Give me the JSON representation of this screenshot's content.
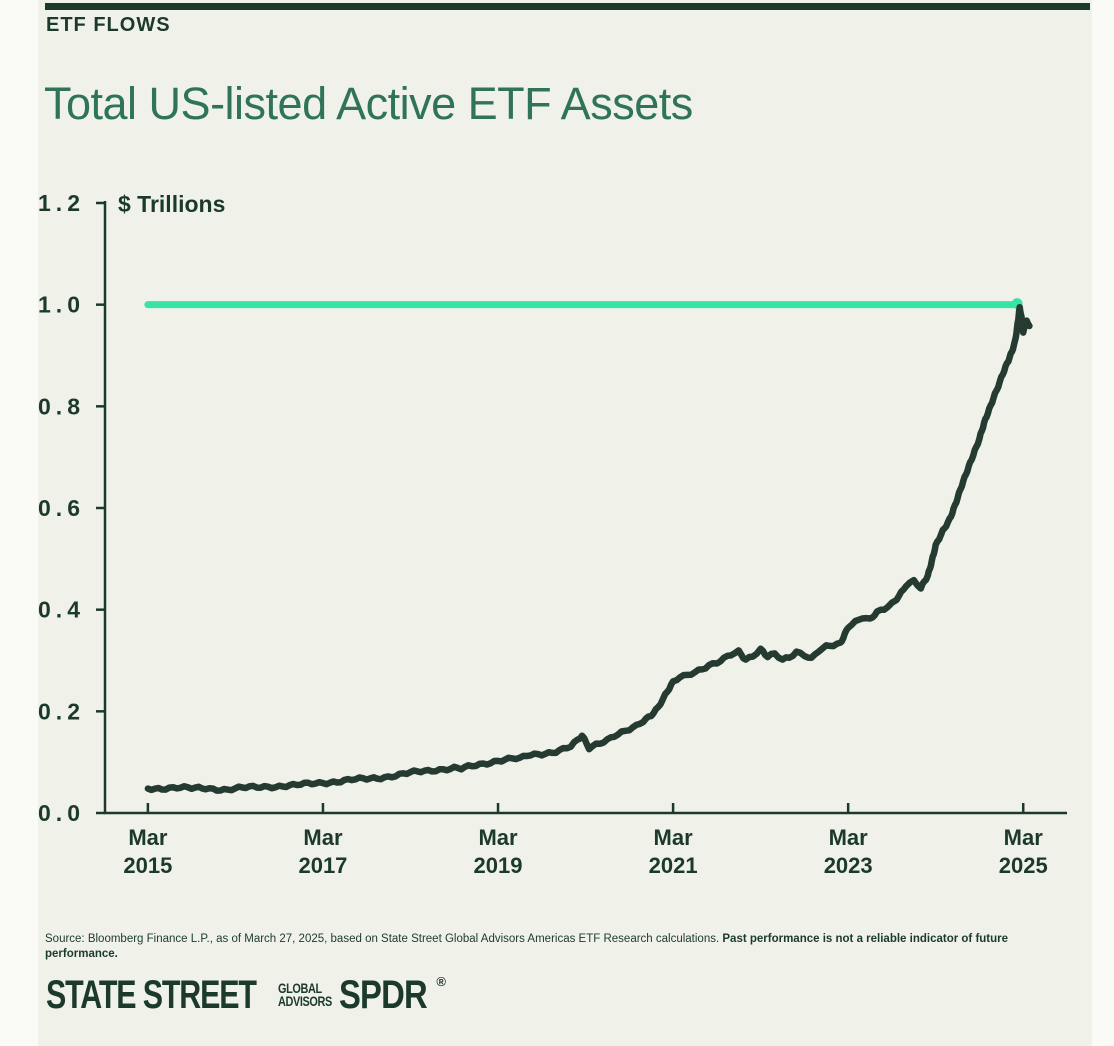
{
  "header": {
    "kicker": "ETF FLOWS",
    "title": "Total US-listed Active ETF Assets"
  },
  "colors": {
    "background_page": "#fafaf6",
    "background_card": "#f0f1e9",
    "dark_green_text": "#1c3a2c",
    "title_green": "#2f745a",
    "series_line": "#253a30",
    "reference_mint": "#38e3a7"
  },
  "chart_data": {
    "type": "line",
    "title": "Total US-listed Active ETF Assets",
    "unit_label": "$ Trillions",
    "xlabel": "",
    "ylabel": "$ Trillions",
    "ylim": [
      0,
      1.2
    ],
    "xlim": [
      2014.68,
      2025.67
    ],
    "grid": false,
    "legend_position": "none",
    "y_ticks": [
      0.0,
      0.2,
      0.4,
      0.6,
      0.8,
      1.0,
      1.2
    ],
    "y_tick_labels": [
      "0.0",
      "0.2",
      "0.4",
      "0.6",
      "0.8",
      "1.0",
      "1.2"
    ],
    "x_ticks": [
      2015.17,
      2017.17,
      2019.17,
      2021.17,
      2023.17,
      2025.17
    ],
    "x_tick_labels": [
      [
        "Mar",
        "2015"
      ],
      [
        "Mar",
        "2017"
      ],
      [
        "Mar",
        "2019"
      ],
      [
        "Mar",
        "2021"
      ],
      [
        "Mar",
        "2023"
      ],
      [
        "Mar",
        "2025"
      ]
    ],
    "reference_line": {
      "value": 1.0,
      "x_start": 2015.17,
      "x_end": 2025.1,
      "color": "#38e3a7",
      "end_dot": true
    },
    "series": [
      {
        "name": "Total US-listed Active ETF Assets ($ Trillions)",
        "color": "#253a30",
        "points": [
          [
            2015.17,
            0.048
          ],
          [
            2015.33,
            0.049
          ],
          [
            2015.5,
            0.05
          ],
          [
            2015.67,
            0.048
          ],
          [
            2015.83,
            0.049
          ],
          [
            2016.0,
            0.047
          ],
          [
            2016.08,
            0.046
          ],
          [
            2016.17,
            0.048
          ],
          [
            2016.33,
            0.05
          ],
          [
            2016.5,
            0.052
          ],
          [
            2016.67,
            0.053
          ],
          [
            2016.83,
            0.054
          ],
          [
            2017.0,
            0.057
          ],
          [
            2017.17,
            0.06
          ],
          [
            2017.33,
            0.062
          ],
          [
            2017.5,
            0.065
          ],
          [
            2017.67,
            0.067
          ],
          [
            2017.83,
            0.07
          ],
          [
            2018.0,
            0.074
          ],
          [
            2018.17,
            0.079
          ],
          [
            2018.33,
            0.082
          ],
          [
            2018.5,
            0.086
          ],
          [
            2018.67,
            0.089
          ],
          [
            2018.75,
            0.087
          ],
          [
            2018.83,
            0.09
          ],
          [
            2019.0,
            0.096
          ],
          [
            2019.17,
            0.104
          ],
          [
            2019.33,
            0.108
          ],
          [
            2019.42,
            0.106
          ],
          [
            2019.5,
            0.112
          ],
          [
            2019.67,
            0.116
          ],
          [
            2019.83,
            0.122
          ],
          [
            2020.0,
            0.131
          ],
          [
            2020.08,
            0.142
          ],
          [
            2020.13,
            0.151
          ],
          [
            2020.21,
            0.128
          ],
          [
            2020.29,
            0.136
          ],
          [
            2020.42,
            0.145
          ],
          [
            2020.5,
            0.152
          ],
          [
            2020.58,
            0.157
          ],
          [
            2020.67,
            0.163
          ],
          [
            2020.75,
            0.17
          ],
          [
            2020.83,
            0.181
          ],
          [
            2020.92,
            0.194
          ],
          [
            2021.0,
            0.209
          ],
          [
            2021.08,
            0.231
          ],
          [
            2021.17,
            0.256
          ],
          [
            2021.25,
            0.268
          ],
          [
            2021.33,
            0.272
          ],
          [
            2021.42,
            0.279
          ],
          [
            2021.5,
            0.284
          ],
          [
            2021.58,
            0.29
          ],
          [
            2021.67,
            0.294
          ],
          [
            2021.75,
            0.302
          ],
          [
            2021.83,
            0.311
          ],
          [
            2021.92,
            0.318
          ],
          [
            2022.0,
            0.303
          ],
          [
            2022.08,
            0.31
          ],
          [
            2022.17,
            0.322
          ],
          [
            2022.25,
            0.306
          ],
          [
            2022.33,
            0.312
          ],
          [
            2022.42,
            0.301
          ],
          [
            2022.5,
            0.307
          ],
          [
            2022.58,
            0.318
          ],
          [
            2022.67,
            0.312
          ],
          [
            2022.75,
            0.304
          ],
          [
            2022.83,
            0.318
          ],
          [
            2022.92,
            0.326
          ],
          [
            2023.0,
            0.329
          ],
          [
            2023.08,
            0.333
          ],
          [
            2023.17,
            0.368
          ],
          [
            2023.25,
            0.376
          ],
          [
            2023.33,
            0.384
          ],
          [
            2023.42,
            0.379
          ],
          [
            2023.5,
            0.394
          ],
          [
            2023.58,
            0.402
          ],
          [
            2023.67,
            0.413
          ],
          [
            2023.75,
            0.428
          ],
          [
            2023.83,
            0.447
          ],
          [
            2023.92,
            0.455
          ],
          [
            2024.0,
            0.441
          ],
          [
            2024.08,
            0.468
          ],
          [
            2024.17,
            0.525
          ],
          [
            2024.25,
            0.553
          ],
          [
            2024.33,
            0.579
          ],
          [
            2024.42,
            0.62
          ],
          [
            2024.5,
            0.658
          ],
          [
            2024.58,
            0.698
          ],
          [
            2024.67,
            0.737
          ],
          [
            2024.75,
            0.779
          ],
          [
            2024.83,
            0.818
          ],
          [
            2024.92,
            0.856
          ],
          [
            2025.0,
            0.889
          ],
          [
            2025.04,
            0.908
          ],
          [
            2025.08,
            0.932
          ],
          [
            2025.1,
            0.955
          ],
          [
            2025.13,
            0.993
          ],
          [
            2025.15,
            0.975
          ],
          [
            2025.17,
            0.948
          ],
          [
            2025.21,
            0.972
          ],
          [
            2025.24,
            0.958
          ]
        ]
      }
    ]
  },
  "footer": {
    "source_text": "Source: Bloomberg Finance L.P., as of March 27, 2025, based on State Street Global Advisors Americas ETF Research calculations. ",
    "disclaimer_bold": "Past performance is not a reliable indicator of future performance."
  },
  "logo": {
    "state_street": "STATE STREET",
    "global": "GLOBAL",
    "advisors": "ADVISORS",
    "spdr": "SPDR",
    "registered_mark": "®"
  }
}
